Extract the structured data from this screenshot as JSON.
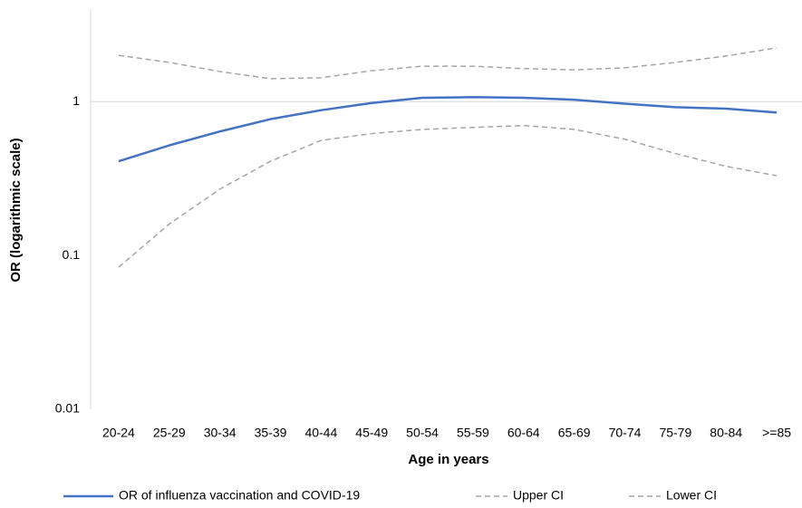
{
  "chart_data": {
    "type": "line",
    "x_label": "Age in years",
    "y_label": "OR (logarithmic scale)",
    "categories": [
      "20-24",
      "25-29",
      "30-34",
      "35-39",
      "40-44",
      "45-49",
      "50-54",
      "55-59",
      "60-64",
      "65-69",
      "70-74",
      "75-79",
      "80-84",
      ">=85"
    ],
    "series": [
      {
        "name": "OR of influenza vaccination and COVID-19",
        "color": "#4472c4",
        "dash": false,
        "values": [
          0.41,
          0.52,
          0.64,
          0.77,
          0.88,
          0.98,
          1.06,
          1.07,
          1.06,
          1.03,
          0.97,
          0.92,
          0.9,
          0.85
        ]
      },
      {
        "name": "Upper CI",
        "color": "#a5a5a5",
        "dash": true,
        "values": [
          2.0,
          1.8,
          1.57,
          1.41,
          1.43,
          1.59,
          1.7,
          1.7,
          1.64,
          1.61,
          1.66,
          1.8,
          1.98,
          2.24
        ]
      },
      {
        "name": "Lower CI",
        "color": "#a5a5a5",
        "dash": true,
        "values": [
          0.084,
          0.16,
          0.27,
          0.41,
          0.56,
          0.62,
          0.66,
          0.68,
          0.7,
          0.66,
          0.57,
          0.46,
          0.38,
          0.33
        ]
      }
    ],
    "log_y": true,
    "ylim": [
      0.01,
      4
    ],
    "yticks": [
      0.01,
      0.1,
      1
    ],
    "x_axis_crosses": 1,
    "legend": "bottom"
  }
}
